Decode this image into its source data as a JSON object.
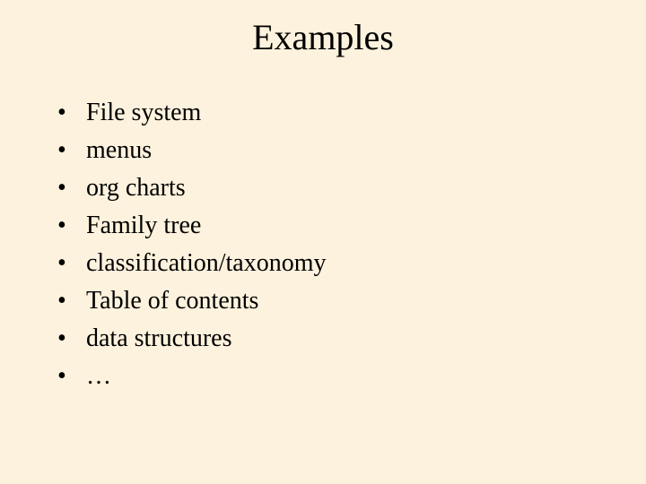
{
  "slide": {
    "title": "Examples",
    "title_fontsize": 40,
    "body_fontsize": 28,
    "font_family": "Times New Roman",
    "background_color": "#fdf2dd",
    "text_color": "#000000",
    "bullets": [
      "File system",
      "menus",
      "org charts",
      "Family tree",
      "classification/taxonomy",
      "Table of contents",
      "data structures",
      "…"
    ]
  }
}
